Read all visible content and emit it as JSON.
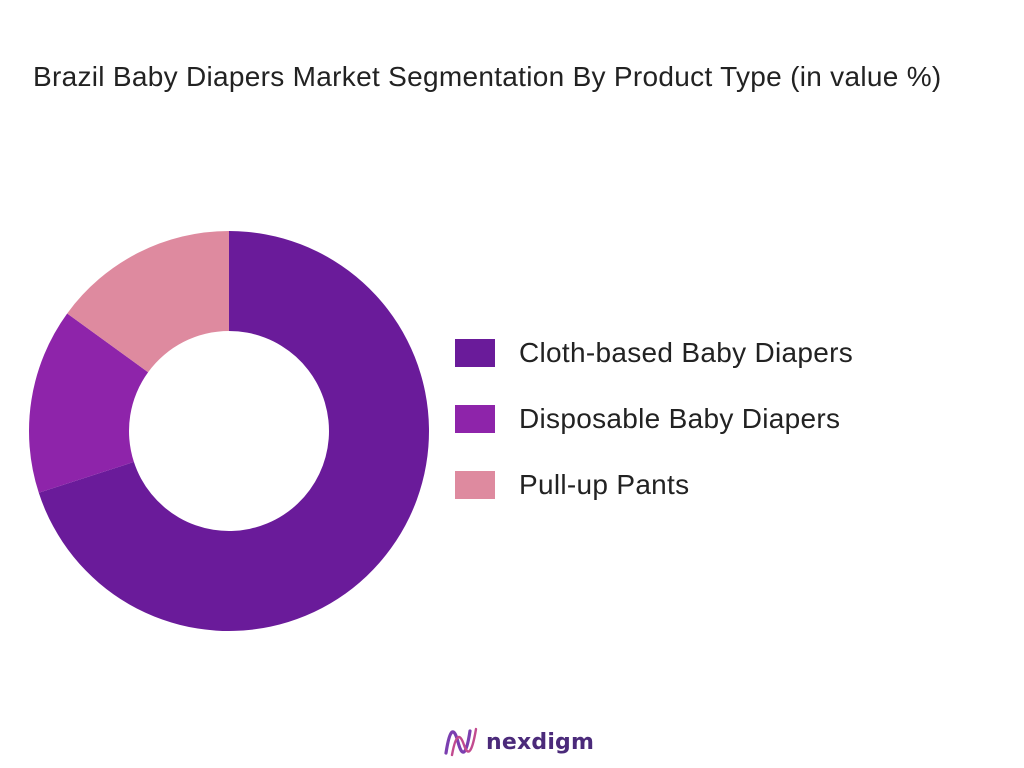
{
  "chart_data": {
    "type": "pie",
    "style": "donut",
    "title": "Brazil Baby Diapers Market Segmentation By Product Type (in value %)",
    "unit": "%",
    "categories": [
      "Cloth-based Baby Diapers",
      "Disposable Baby Diapers",
      "Pull-up Pants"
    ],
    "values": [
      70,
      15,
      15
    ],
    "colors": [
      "#6a1b9a",
      "#8e24aa",
      "#de8a9f"
    ],
    "legend_position": "right"
  },
  "brand": {
    "name": "nexdigm",
    "color": "#4b2a7a",
    "icon": "nexdigm-logo-mark"
  }
}
